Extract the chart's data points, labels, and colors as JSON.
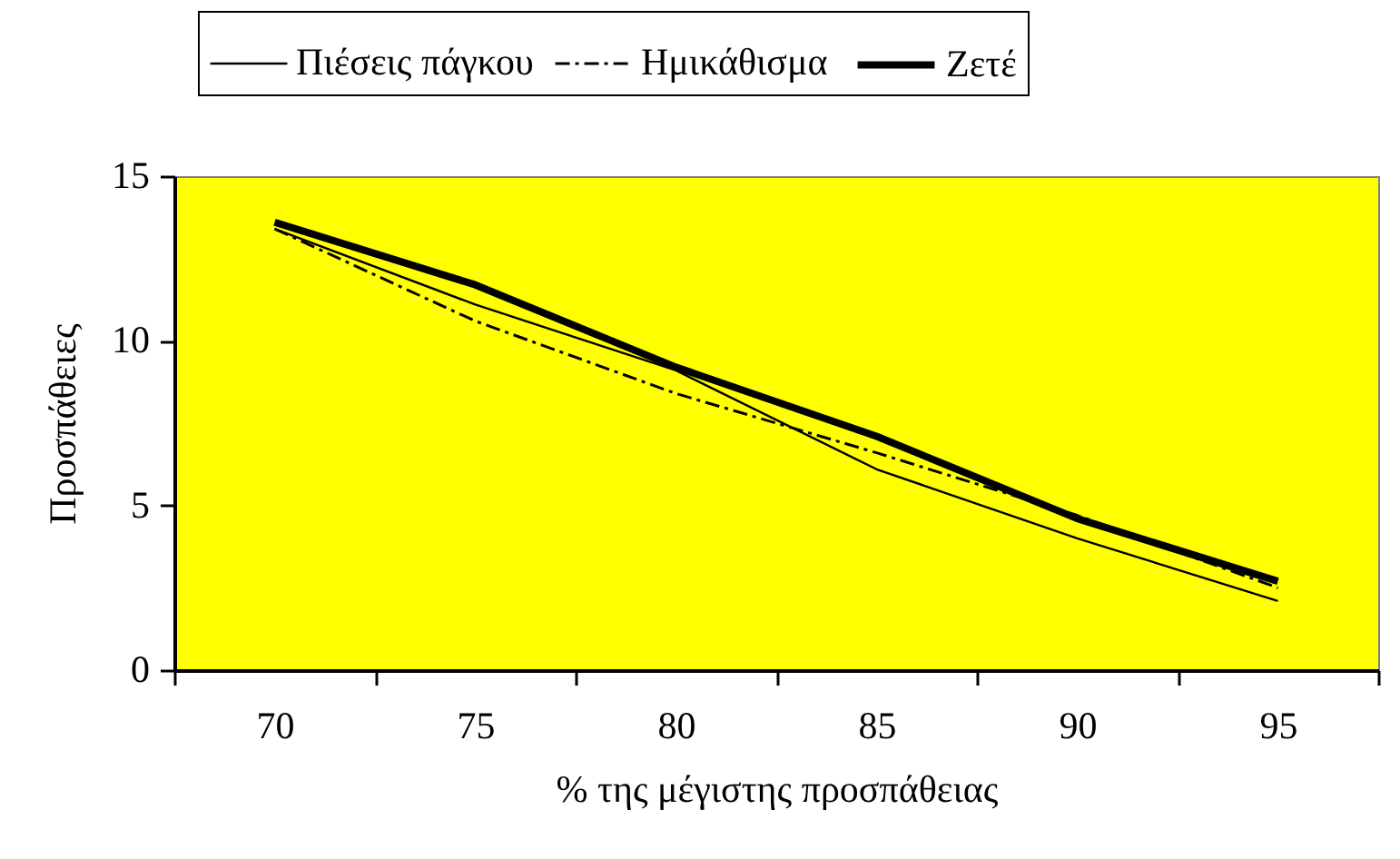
{
  "chart_data": {
    "type": "line",
    "xlabel": "% της μέγιστης προσπάθειας",
    "ylabel": "Προσπάθειες",
    "categories": [
      "70",
      "75",
      "80",
      "85",
      "90",
      "95"
    ],
    "series": [
      {
        "name": "Πιέσεις πάγκου",
        "color": "#000000",
        "line_style": "solid",
        "values": [
          13.4,
          11.1,
          9.1,
          6.1,
          4.0,
          2.1
        ]
      },
      {
        "name": "Ημικάθισμα",
        "color": "#000000",
        "line_style": "dashed",
        "values": [
          13.4,
          10.6,
          8.4,
          6.6,
          4.7,
          2.5
        ]
      },
      {
        "name": "Ζετέ",
        "color": "#000000",
        "line_style": "solid",
        "values": [
          13.6,
          11.7,
          9.2,
          7.1,
          4.6,
          2.7
        ]
      }
    ],
    "ylim": [
      0,
      15
    ],
    "yticks": [
      0,
      5,
      10,
      15
    ],
    "grid": false,
    "legend": "top",
    "marker": "none"
  }
}
